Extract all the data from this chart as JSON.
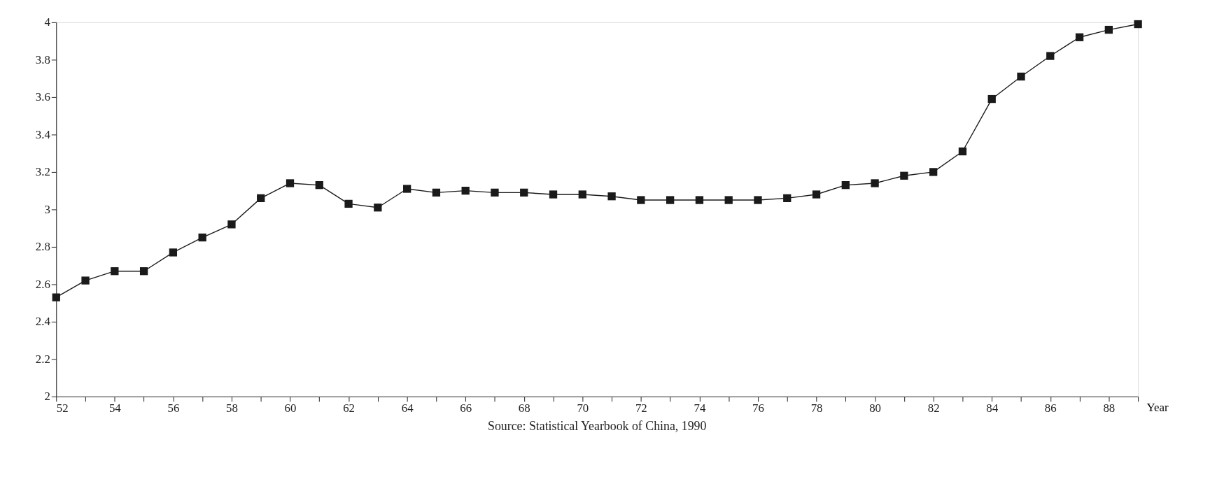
{
  "chart_data": {
    "type": "line",
    "xlabel": "Year",
    "x": [
      52,
      53,
      54,
      55,
      56,
      57,
      58,
      59,
      60,
      61,
      62,
      63,
      64,
      65,
      66,
      67,
      68,
      69,
      70,
      71,
      72,
      73,
      74,
      75,
      76,
      77,
      78,
      79,
      80,
      81,
      82,
      83,
      84,
      85,
      86,
      87,
      88,
      89
    ],
    "series": [
      {
        "color": "#1a1a1a",
        "values": [
          2.53,
          2.62,
          2.67,
          2.67,
          2.77,
          2.85,
          2.92,
          3.06,
          3.14,
          3.13,
          3.03,
          3.01,
          3.11,
          3.09,
          3.1,
          3.09,
          3.09,
          3.08,
          3.08,
          3.07,
          3.05,
          3.05,
          3.05,
          3.05,
          3.05,
          3.06,
          3.08,
          3.13,
          3.14,
          3.18,
          3.2,
          3.31,
          3.59,
          3.71,
          3.82,
          3.92,
          3.96,
          3.99
        ]
      }
    ],
    "xlim": [
      52,
      89
    ],
    "xticks": [
      52,
      {
        "value": 53,
        "label": null
      },
      54,
      {
        "value": 55,
        "label": null
      },
      56,
      {
        "value": 57,
        "label": null
      },
      58,
      {
        "value": 59,
        "label": null
      },
      60,
      {
        "value": 61,
        "label": null
      },
      62,
      {
        "value": 63,
        "label": null
      },
      64,
      {
        "value": 65,
        "label": null
      },
      66,
      {
        "value": 67,
        "label": null
      },
      68,
      {
        "value": 69,
        "label": null
      },
      70,
      {
        "value": 71,
        "label": null
      },
      72,
      {
        "value": 73,
        "label": null
      },
      74,
      {
        "value": 75,
        "label": null
      },
      76,
      {
        "value": 77,
        "label": null
      },
      78,
      {
        "value": 79,
        "label": null
      },
      80,
      {
        "value": 81,
        "label": null
      },
      82,
      {
        "value": 83,
        "label": null
      },
      84,
      {
        "value": 85,
        "label": null
      },
      86,
      {
        "value": 87,
        "label": null
      },
      88,
      {
        "value": 89,
        "label": null
      }
    ],
    "ylim": [
      2,
      4
    ],
    "yticks": [
      2,
      2.2,
      2.4,
      2.6,
      2.8,
      3,
      3.2,
      3.4,
      3.6,
      3.8,
      4
    ],
    "annotations": [
      "Source: Statistical Yearbook of China, 1990"
    ],
    "marker": "square",
    "line_style": "solid",
    "grid": false
  }
}
